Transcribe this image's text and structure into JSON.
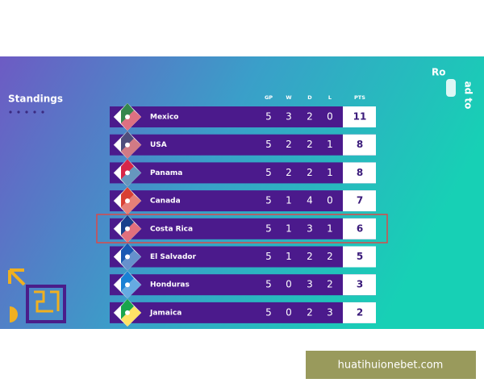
{
  "header": {
    "title": "Standings"
  },
  "logo": {
    "top": "Ro",
    "side": "ad to"
  },
  "table": {
    "columns": [
      "GP",
      "W",
      "D",
      "L",
      "PTS"
    ],
    "rows": [
      [
        "Mexico",
        5,
        3,
        2,
        0,
        11
      ],
      [
        "USA",
        5,
        2,
        2,
        1,
        8
      ],
      [
        "Panama",
        5,
        2,
        2,
        1,
        8
      ],
      [
        "Canada",
        5,
        1,
        4,
        0,
        7
      ],
      [
        "Costa Rica",
        5,
        1,
        3,
        1,
        6
      ],
      [
        "El Salvador",
        5,
        1,
        2,
        2,
        5
      ],
      [
        "Honduras",
        5,
        0,
        3,
        2,
        3
      ],
      [
        "Jamaica",
        5,
        0,
        2,
        3,
        2
      ]
    ]
  },
  "watermark": "huatihuionebet.com"
}
